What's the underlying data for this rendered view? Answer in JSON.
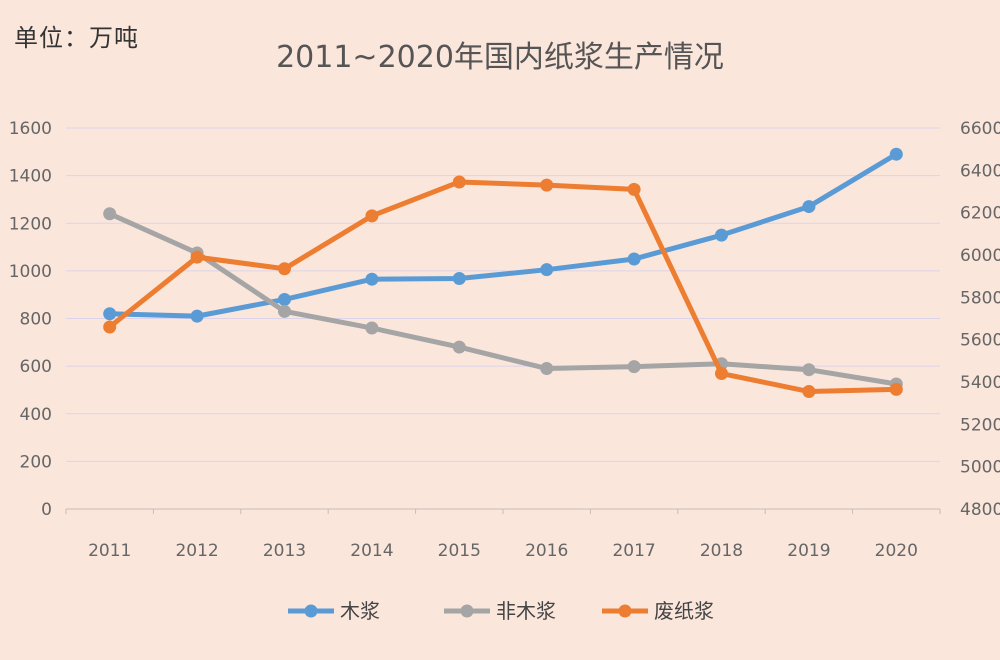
{
  "unit_label": "单位：万吨",
  "chart_data": {
    "type": "line",
    "title": "2011~2020年国内纸浆生产情况",
    "categories": [
      "2011",
      "2012",
      "2013",
      "2014",
      "2015",
      "2016",
      "2017",
      "2018",
      "2019",
      "2020"
    ],
    "y_left": {
      "range": [
        0,
        1600
      ],
      "ticks": [
        0,
        200,
        400,
        600,
        800,
        1000,
        1200,
        1400,
        1600
      ]
    },
    "y_right": {
      "range": [
        4800,
        6600
      ],
      "ticks": [
        4800,
        5000,
        5200,
        5400,
        5600,
        5800,
        6000,
        6200,
        6400,
        6600
      ]
    },
    "grid": true,
    "legend_position": "bottom",
    "series": [
      {
        "name": "木浆",
        "axis": "left",
        "color": "#5b9bd5",
        "values": [
          820,
          810,
          880,
          965,
          968,
          1005,
          1050,
          1150,
          1270,
          1490
        ]
      },
      {
        "name": "非木浆",
        "axis": "left",
        "color": "#a5a5a5",
        "values": [
          1240,
          1075,
          830,
          760,
          680,
          590,
          598,
          610,
          585,
          525
        ]
      },
      {
        "name": "废纸浆",
        "axis": "right",
        "color": "#ed7d31",
        "values": [
          5660,
          5990,
          5935,
          6185,
          6345,
          6330,
          6310,
          5440,
          5355,
          5365
        ]
      }
    ]
  }
}
